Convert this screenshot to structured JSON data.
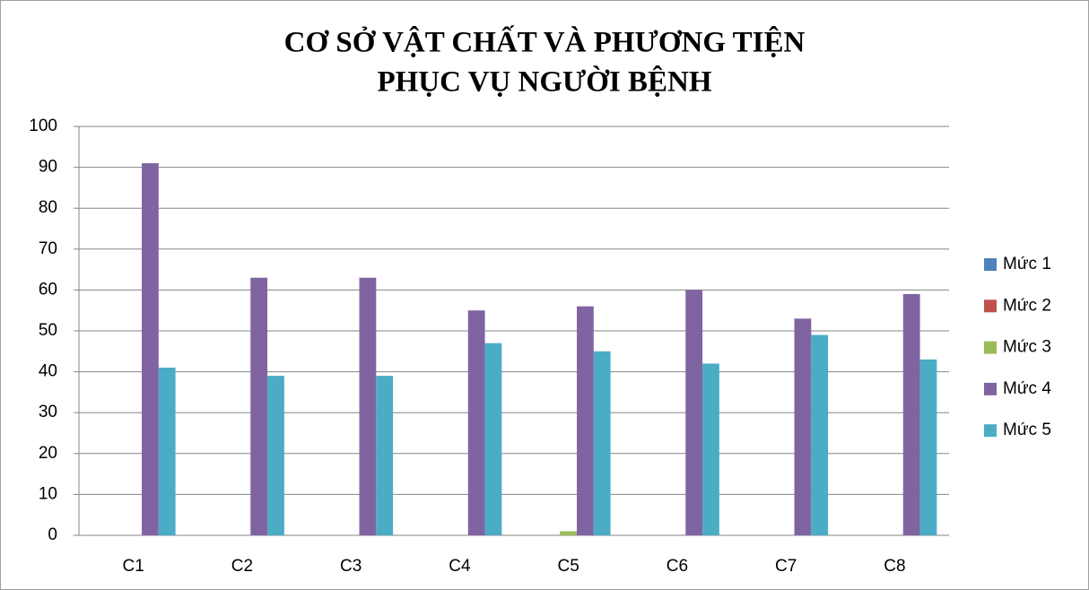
{
  "chart_data": {
    "type": "bar",
    "title": [
      "CƠ SỞ VẬT CHẤT VÀ PHƯƠNG TIỆN",
      "PHỤC VỤ NGƯỜI BỆNH"
    ],
    "categories": [
      "C1",
      "C2",
      "C3",
      "C4",
      "C5",
      "C6",
      "C7",
      "C8"
    ],
    "series": [
      {
        "name": "Mức 1",
        "color": "#4f81bd",
        "values": [
          0,
          0,
          0,
          0,
          0,
          0,
          0,
          0
        ]
      },
      {
        "name": "Mức 2",
        "color": "#c0504d",
        "values": [
          0,
          0,
          0,
          0,
          0,
          0,
          0,
          0
        ]
      },
      {
        "name": "Mức 3",
        "color": "#9bbb59",
        "values": [
          0,
          0,
          0,
          0,
          1,
          0,
          0,
          0
        ]
      },
      {
        "name": "Mức 4",
        "color": "#8064a2",
        "values": [
          91,
          63,
          63,
          55,
          56,
          60,
          53,
          59
        ]
      },
      {
        "name": "Mức 5",
        "color": "#4bacc6",
        "values": [
          41,
          39,
          39,
          47,
          45,
          42,
          49,
          43
        ]
      }
    ],
    "ylim": [
      0,
      100
    ],
    "yticks": [
      0,
      10,
      20,
      30,
      40,
      50,
      60,
      70,
      80,
      90,
      100
    ],
    "grid": true,
    "legend": "right"
  }
}
